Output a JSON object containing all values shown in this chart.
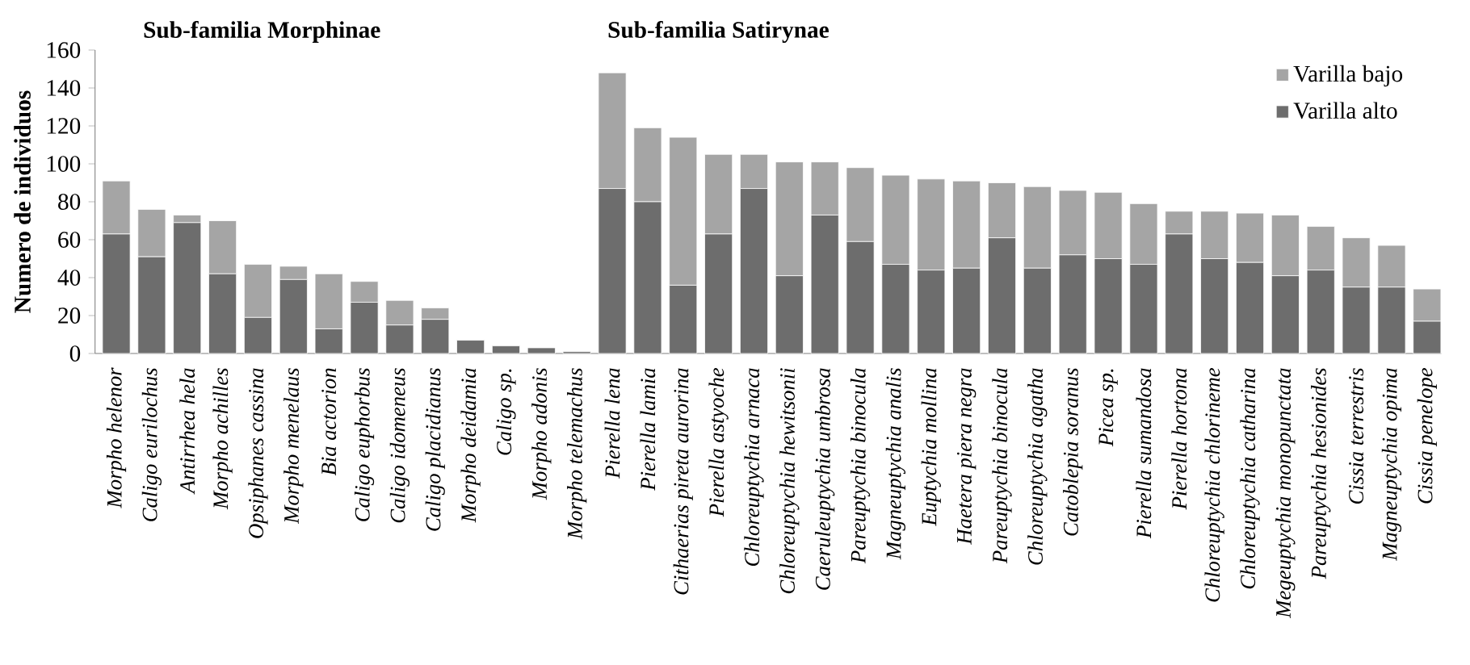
{
  "chart_data": {
    "type": "bar",
    "stacked": true,
    "ylabel": "Numero de individuos",
    "annotations": [
      "Sub-familia Morphinae",
      "Sub-familia Satirynae"
    ],
    "categories": [
      "Morpho helenor",
      "Caligo eurilochus",
      "Antirrhea hela",
      "Morpho achilles",
      "Opsiphanes cassina",
      "Morpho menelaus",
      "Bia actorion",
      "Caligo euphorbus",
      "Caligo idomeneus",
      "Caligo placidianus",
      "Morpho deidamia",
      "Caligo sp.",
      "Morpho adonis",
      "Morpho telemachus",
      "Pierella lena",
      "Pierella lamia",
      "Cithaerias pireta aurorina",
      "Pierella astyoche",
      "Chloreuptychia arnaca",
      "Chloreuptychia hewitsonii",
      "Caeruleuptychia umbrosa",
      "Pareuptychia binocula",
      "Magneuptychia analis",
      "Euptychia mollina",
      "Haetera piera negra",
      "Pareuptychia binocula",
      "Chloreuptychia agatha",
      "Catoblepia soranus",
      "Picea sp.",
      "Pierella sumandosa",
      "Pierella hortona",
      "Chloreuptychia chlorineme",
      "Chloreuptychia catharina",
      "Megeuptychia monopunctata",
      "Pareuptychia  hesionides",
      "Cissia terrestris",
      "Magneuptychia opima",
      "Cissia penelope"
    ],
    "series": [
      {
        "name": "Varilla alto",
        "color": "#6d6d6d",
        "values": [
          63,
          51,
          69,
          42,
          19,
          39,
          13,
          27,
          15,
          18,
          7,
          4,
          3,
          1,
          87,
          80,
          36,
          63,
          87,
          41,
          73,
          59,
          47,
          44,
          45,
          61,
          45,
          52,
          50,
          47,
          63,
          50,
          48,
          41,
          44,
          35,
          35,
          17
        ]
      },
      {
        "name": "Varilla bajo",
        "color": "#a5a5a5",
        "values": [
          28,
          25,
          4,
          28,
          28,
          7,
          29,
          11,
          13,
          6,
          0,
          0,
          0,
          0,
          61,
          39,
          78,
          42,
          18,
          60,
          28,
          39,
          47,
          48,
          46,
          29,
          43,
          34,
          35,
          32,
          12,
          25,
          26,
          32,
          23,
          26,
          22,
          17
        ]
      }
    ],
    "ylim": [
      0,
      160
    ],
    "yticks": [
      0,
      20,
      40,
      60,
      80,
      100,
      120,
      140,
      160
    ],
    "legend": "top right",
    "grid": false
  }
}
